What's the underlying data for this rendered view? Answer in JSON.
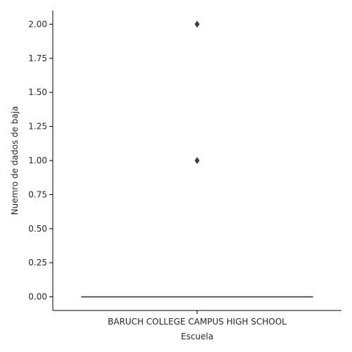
{
  "chart_data": {
    "type": "box",
    "xlabel": "Escuela",
    "ylabel": "Nuemro de dados de baja",
    "categories": [
      "BARUCH COLLEGE CAMPUS HIGH SCHOOL"
    ],
    "yticks": [
      0.0,
      0.25,
      0.5,
      0.75,
      1.0,
      1.25,
      1.5,
      1.75,
      2.0
    ],
    "ytick_labels": [
      "0.00",
      "0.25",
      "0.50",
      "0.75",
      "1.00",
      "1.25",
      "1.50",
      "1.75",
      "2.00"
    ],
    "ylim": [
      -0.1,
      2.1
    ],
    "boxes": [
      {
        "category": "BARUCH COLLEGE CAMPUS HIGH SCHOOL",
        "min": 0,
        "q1": 0,
        "median": 0,
        "q3": 0,
        "max": 0,
        "outliers": [
          1,
          2
        ]
      }
    ],
    "grid": false,
    "colors": {
      "box": "#3d3d3d",
      "outlier": "#3d3d3d",
      "axis": "#000000",
      "text": "#262626"
    }
  }
}
